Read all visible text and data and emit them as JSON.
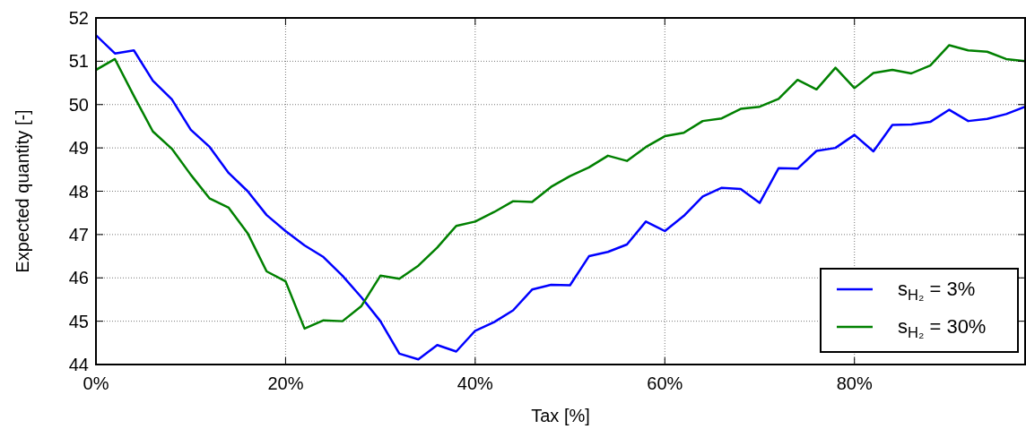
{
  "chart_data": {
    "type": "line",
    "xlabel": "Tax [%]",
    "ylabel": "Expected quantity [-]",
    "x": [
      0,
      2,
      4,
      6,
      8,
      10,
      12,
      14,
      16,
      18,
      20,
      22,
      24,
      26,
      28,
      30,
      32,
      34,
      36,
      38,
      40,
      42,
      44,
      46,
      48,
      50,
      52,
      54,
      56,
      58,
      60,
      62,
      64,
      66,
      68,
      70,
      72,
      74,
      76,
      78,
      80,
      82,
      84,
      86,
      88,
      90,
      92,
      94,
      96,
      98
    ],
    "series": [
      {
        "name": "s$_{H₂}$ = 3%",
        "color": "#0000ff",
        "values": [
          51.6,
          51.18,
          51.25,
          50.55,
          50.12,
          49.42,
          49.02,
          48.42,
          48.0,
          47.45,
          47.08,
          46.75,
          46.48,
          46.05,
          45.55,
          45.0,
          44.25,
          44.12,
          44.45,
          44.3,
          44.78,
          44.98,
          45.25,
          45.73,
          45.84,
          45.83,
          46.5,
          46.6,
          46.77,
          47.3,
          47.08,
          47.43,
          47.88,
          48.08,
          48.05,
          47.73,
          48.53,
          48.52,
          48.93,
          49.0,
          49.3,
          48.92,
          49.53,
          49.54,
          49.6,
          49.88,
          49.62,
          49.67,
          49.78,
          49.95
        ]
      },
      {
        "name": "s$_{H₂}$ = 30%",
        "color": "#008000",
        "values": [
          50.8,
          51.05,
          50.2,
          49.38,
          48.98,
          48.38,
          47.83,
          47.62,
          47.03,
          46.15,
          45.92,
          44.83,
          45.02,
          45.0,
          45.35,
          46.05,
          45.98,
          46.28,
          46.7,
          47.2,
          47.3,
          47.52,
          47.77,
          47.75,
          48.1,
          48.35,
          48.55,
          48.82,
          48.7,
          49.02,
          49.27,
          49.35,
          49.62,
          49.68,
          49.9,
          49.95,
          50.13,
          50.57,
          50.35,
          50.85,
          50.38,
          50.73,
          50.8,
          50.72,
          50.9,
          51.37,
          51.25,
          51.22,
          51.05,
          51.0
        ]
      }
    ],
    "xlim": [
      0,
      98
    ],
    "xticks": [
      {
        "value": 0,
        "label": "0%"
      },
      {
        "value": 20,
        "label": "20%"
      },
      {
        "value": 40,
        "label": "40%"
      },
      {
        "value": 60,
        "label": "60%"
      },
      {
        "value": 80,
        "label": "80%"
      }
    ],
    "ylim": [
      44,
      52
    ],
    "yticks": [
      44,
      45,
      46,
      47,
      48,
      49,
      50,
      51,
      52
    ],
    "grid": true,
    "legend": "bottom right",
    "line_style": "solid",
    "marker": "none"
  }
}
